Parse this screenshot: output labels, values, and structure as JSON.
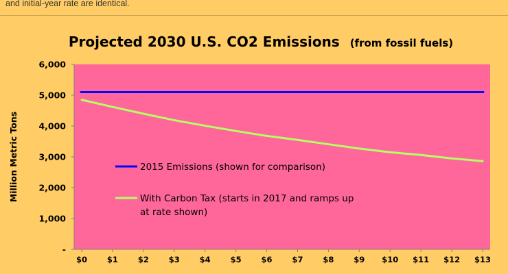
{
  "page": {
    "caption": "and initial-year rate are identical."
  },
  "colors": {
    "page_background": "#FFCC66",
    "plot_background": "#FF6699",
    "series_2015": "#0000FF",
    "series_tax": "#B5FF66",
    "text": "#000000"
  },
  "chart_data": {
    "type": "line",
    "title": "Projected 2030 U.S. CO2 Emissions",
    "subtitle": "(from fossil fuels)",
    "xlabel": "",
    "ylabel": "Million Metric Tons",
    "categories": [
      "$0",
      "$1",
      "$2",
      "$3",
      "$4",
      "$5",
      "$6",
      "$7",
      "$8",
      "$9",
      "$10",
      "$11",
      "$12",
      "$13"
    ],
    "y_ticks": [
      "-",
      "1,000",
      "2,000",
      "3,000",
      "4,000",
      "5,000",
      "6,000"
    ],
    "ylim": [
      0,
      6000
    ],
    "grid": false,
    "legend_position": "inside-left",
    "series": [
      {
        "name": "2015 Emissions (shown for comparison)",
        "values": [
          5100,
          5100,
          5100,
          5100,
          5100,
          5100,
          5100,
          5100,
          5100,
          5100,
          5100,
          5100,
          5100,
          5100
        ]
      },
      {
        "name": "With Carbon Tax (starts in 2017 and ramps up at rate shown)",
        "legend_lines": [
          "With Carbon Tax (starts in 2017 and ramps up",
          "at rate shown)"
        ],
        "values": [
          4850,
          4620,
          4400,
          4190,
          4010,
          3840,
          3680,
          3550,
          3410,
          3270,
          3150,
          3060,
          2950,
          2860
        ]
      }
    ]
  }
}
